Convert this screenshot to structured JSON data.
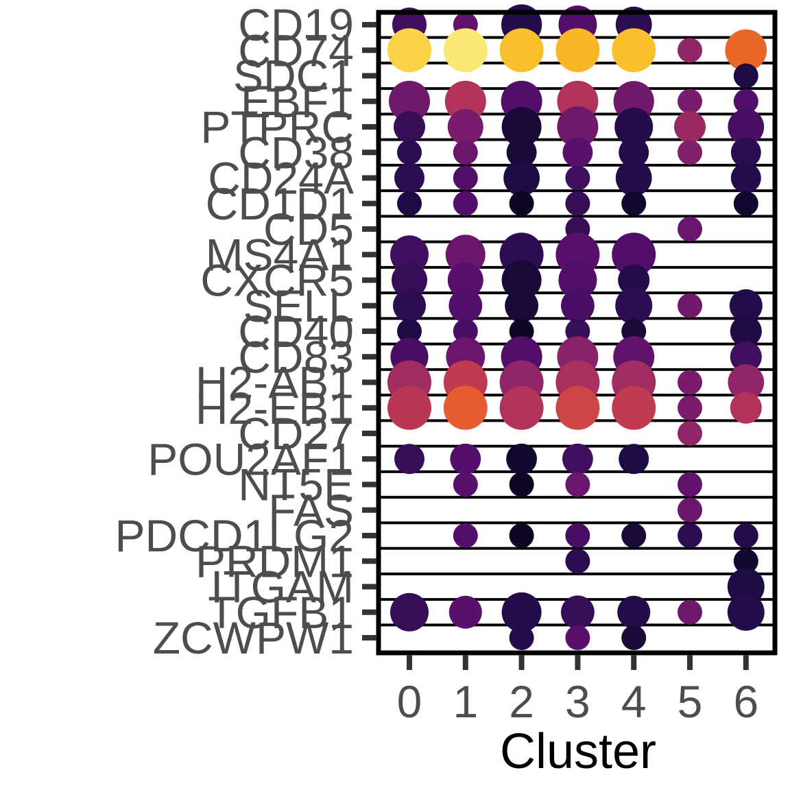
{
  "chart_data": {
    "type": "dotplot",
    "xlabel": "Cluster",
    "clusters": [
      "0",
      "1",
      "2",
      "3",
      "4",
      "5",
      "6"
    ],
    "genes": [
      "CD19",
      "CD74",
      "SDC1",
      "EBF1",
      "PTPRC",
      "CD38",
      "CD24A",
      "CD1D1",
      "CD5",
      "MS4A1",
      "CXCR5",
      "SELL",
      "CD40",
      "CD83",
      "H2-AB1",
      "H2-EB1",
      "CD27",
      "POU2AF1",
      "NT5E",
      "FAS",
      "PDCD1LG2",
      "PRDM1",
      "ITGAM",
      "TGFB1",
      "ZCWPW1"
    ],
    "grid": true,
    "colormap": "inferno",
    "note_sizes": "size = relative dot size (0-1), color = relative expression (0-1)",
    "dots": [
      {
        "gene": "CD19",
        "cluster": "0",
        "size": 0.65,
        "expr": 0.2
      },
      {
        "gene": "CD19",
        "cluster": "1",
        "size": 0.3,
        "expr": 0.28
      },
      {
        "gene": "CD19",
        "cluster": "2",
        "size": 0.88,
        "expr": 0.14
      },
      {
        "gene": "CD19",
        "cluster": "3",
        "size": 0.8,
        "expr": 0.24
      },
      {
        "gene": "CD19",
        "cluster": "4",
        "size": 0.72,
        "expr": 0.16
      },
      {
        "gene": "CD74",
        "cluster": "0",
        "size": 1.0,
        "expr": 0.9
      },
      {
        "gene": "CD74",
        "cluster": "1",
        "size": 1.0,
        "expr": 0.95
      },
      {
        "gene": "CD74",
        "cluster": "2",
        "size": 1.0,
        "expr": 0.86
      },
      {
        "gene": "CD74",
        "cluster": "3",
        "size": 1.0,
        "expr": 0.84
      },
      {
        "gene": "CD74",
        "cluster": "4",
        "size": 1.0,
        "expr": 0.86
      },
      {
        "gene": "CD74",
        "cluster": "5",
        "size": 0.3,
        "expr": 0.4
      },
      {
        "gene": "CD74",
        "cluster": "6",
        "size": 0.92,
        "expr": 0.66
      },
      {
        "gene": "SDC1",
        "cluster": "6",
        "size": 0.3,
        "expr": 0.12
      },
      {
        "gene": "EBF1",
        "cluster": "0",
        "size": 0.9,
        "expr": 0.32
      },
      {
        "gene": "EBF1",
        "cluster": "1",
        "size": 0.9,
        "expr": 0.48
      },
      {
        "gene": "EBF1",
        "cluster": "2",
        "size": 0.9,
        "expr": 0.24
      },
      {
        "gene": "EBF1",
        "cluster": "3",
        "size": 0.9,
        "expr": 0.48
      },
      {
        "gene": "EBF1",
        "cluster": "4",
        "size": 0.88,
        "expr": 0.32
      },
      {
        "gene": "EBF1",
        "cluster": "5",
        "size": 0.3,
        "expr": 0.34
      },
      {
        "gene": "EBF1",
        "cluster": "6",
        "size": 0.3,
        "expr": 0.24
      },
      {
        "gene": "PTPRC",
        "cluster": "0",
        "size": 0.55,
        "expr": 0.18
      },
      {
        "gene": "PTPRC",
        "cluster": "1",
        "size": 0.7,
        "expr": 0.34
      },
      {
        "gene": "PTPRC",
        "cluster": "2",
        "size": 0.85,
        "expr": 0.1
      },
      {
        "gene": "PTPRC",
        "cluster": "3",
        "size": 0.9,
        "expr": 0.32
      },
      {
        "gene": "PTPRC",
        "cluster": "4",
        "size": 0.8,
        "expr": 0.14
      },
      {
        "gene": "PTPRC",
        "cluster": "5",
        "size": 0.55,
        "expr": 0.42
      },
      {
        "gene": "PTPRC",
        "cluster": "6",
        "size": 0.72,
        "expr": 0.22
      },
      {
        "gene": "CD38",
        "cluster": "0",
        "size": 0.3,
        "expr": 0.16
      },
      {
        "gene": "CD38",
        "cluster": "1",
        "size": 0.3,
        "expr": 0.3
      },
      {
        "gene": "CD38",
        "cluster": "2",
        "size": 0.5,
        "expr": 0.1
      },
      {
        "gene": "CD38",
        "cluster": "3",
        "size": 0.5,
        "expr": 0.26
      },
      {
        "gene": "CD38",
        "cluster": "4",
        "size": 0.5,
        "expr": 0.14
      },
      {
        "gene": "CD38",
        "cluster": "5",
        "size": 0.3,
        "expr": 0.36
      },
      {
        "gene": "CD38",
        "cluster": "6",
        "size": 0.5,
        "expr": 0.16
      },
      {
        "gene": "CD24A",
        "cluster": "0",
        "size": 0.5,
        "expr": 0.16
      },
      {
        "gene": "CD24A",
        "cluster": "1",
        "size": 0.3,
        "expr": 0.24
      },
      {
        "gene": "CD24A",
        "cluster": "2",
        "size": 0.72,
        "expr": 0.12
      },
      {
        "gene": "CD24A",
        "cluster": "3",
        "size": 0.3,
        "expr": 0.2
      },
      {
        "gene": "CD24A",
        "cluster": "4",
        "size": 0.72,
        "expr": 0.14
      },
      {
        "gene": "CD24A",
        "cluster": "6",
        "size": 0.5,
        "expr": 0.14
      },
      {
        "gene": "CD1D1",
        "cluster": "0",
        "size": 0.3,
        "expr": 0.12
      },
      {
        "gene": "CD1D1",
        "cluster": "1",
        "size": 0.3,
        "expr": 0.24
      },
      {
        "gene": "CD1D1",
        "cluster": "2",
        "size": 0.3,
        "expr": 0.06
      },
      {
        "gene": "CD1D1",
        "cluster": "3",
        "size": 0.3,
        "expr": 0.18
      },
      {
        "gene": "CD1D1",
        "cluster": "4",
        "size": 0.3,
        "expr": 0.08
      },
      {
        "gene": "CD1D1",
        "cluster": "6",
        "size": 0.3,
        "expr": 0.08
      },
      {
        "gene": "CD5",
        "cluster": "3",
        "size": 0.3,
        "expr": 0.18
      },
      {
        "gene": "CD5",
        "cluster": "5",
        "size": 0.3,
        "expr": 0.3
      },
      {
        "gene": "MS4A1",
        "cluster": "0",
        "size": 0.8,
        "expr": 0.2
      },
      {
        "gene": "MS4A1",
        "cluster": "1",
        "size": 0.85,
        "expr": 0.3
      },
      {
        "gene": "MS4A1",
        "cluster": "2",
        "size": 1.0,
        "expr": 0.16
      },
      {
        "gene": "MS4A1",
        "cluster": "3",
        "size": 1.0,
        "expr": 0.26
      },
      {
        "gene": "MS4A1",
        "cluster": "4",
        "size": 1.0,
        "expr": 0.24
      },
      {
        "gene": "CXCR5",
        "cluster": "0",
        "size": 0.7,
        "expr": 0.18
      },
      {
        "gene": "CXCR5",
        "cluster": "1",
        "size": 0.7,
        "expr": 0.26
      },
      {
        "gene": "CXCR5",
        "cluster": "2",
        "size": 0.85,
        "expr": 0.1
      },
      {
        "gene": "CXCR5",
        "cluster": "3",
        "size": 0.8,
        "expr": 0.24
      },
      {
        "gene": "CXCR5",
        "cluster": "4",
        "size": 0.55,
        "expr": 0.14
      },
      {
        "gene": "SELL",
        "cluster": "0",
        "size": 0.6,
        "expr": 0.16
      },
      {
        "gene": "SELL",
        "cluster": "1",
        "size": 0.62,
        "expr": 0.24
      },
      {
        "gene": "SELL",
        "cluster": "2",
        "size": 0.62,
        "expr": 0.1
      },
      {
        "gene": "SELL",
        "cluster": "3",
        "size": 0.62,
        "expr": 0.22
      },
      {
        "gene": "SELL",
        "cluster": "4",
        "size": 0.75,
        "expr": 0.16
      },
      {
        "gene": "SELL",
        "cluster": "5",
        "size": 0.3,
        "expr": 0.32
      },
      {
        "gene": "SELL",
        "cluster": "6",
        "size": 0.6,
        "expr": 0.14
      },
      {
        "gene": "CD40",
        "cluster": "0",
        "size": 0.3,
        "expr": 0.12
      },
      {
        "gene": "CD40",
        "cluster": "1",
        "size": 0.3,
        "expr": 0.22
      },
      {
        "gene": "CD40",
        "cluster": "2",
        "size": 0.3,
        "expr": 0.06
      },
      {
        "gene": "CD40",
        "cluster": "3",
        "size": 0.3,
        "expr": 0.18
      },
      {
        "gene": "CD40",
        "cluster": "4",
        "size": 0.3,
        "expr": 0.1
      },
      {
        "gene": "CD40",
        "cluster": "6",
        "size": 0.55,
        "expr": 0.12
      },
      {
        "gene": "CD83",
        "cluster": "0",
        "size": 0.78,
        "expr": 0.22
      },
      {
        "gene": "CD83",
        "cluster": "1",
        "size": 0.82,
        "expr": 0.3
      },
      {
        "gene": "CD83",
        "cluster": "2",
        "size": 0.9,
        "expr": 0.24
      },
      {
        "gene": "CD83",
        "cluster": "3",
        "size": 0.9,
        "expr": 0.38
      },
      {
        "gene": "CD83",
        "cluster": "4",
        "size": 0.9,
        "expr": 0.28
      },
      {
        "gene": "CD83",
        "cluster": "6",
        "size": 0.55,
        "expr": 0.2
      },
      {
        "gene": "H2-AB1",
        "cluster": "0",
        "size": 1.0,
        "expr": 0.44
      },
      {
        "gene": "H2-AB1",
        "cluster": "1",
        "size": 1.0,
        "expr": 0.52
      },
      {
        "gene": "H2-AB1",
        "cluster": "2",
        "size": 1.0,
        "expr": 0.4
      },
      {
        "gene": "H2-AB1",
        "cluster": "3",
        "size": 1.0,
        "expr": 0.46
      },
      {
        "gene": "H2-AB1",
        "cluster": "4",
        "size": 1.0,
        "expr": 0.44
      },
      {
        "gene": "H2-AB1",
        "cluster": "5",
        "size": 0.3,
        "expr": 0.34
      },
      {
        "gene": "H2-AB1",
        "cluster": "6",
        "size": 0.72,
        "expr": 0.4
      },
      {
        "gene": "H2-EB1",
        "cluster": "0",
        "size": 1.0,
        "expr": 0.5
      },
      {
        "gene": "H2-EB1",
        "cluster": "1",
        "size": 1.0,
        "expr": 0.64
      },
      {
        "gene": "H2-EB1",
        "cluster": "2",
        "size": 1.0,
        "expr": 0.48
      },
      {
        "gene": "H2-EB1",
        "cluster": "3",
        "size": 1.0,
        "expr": 0.56
      },
      {
        "gene": "H2-EB1",
        "cluster": "4",
        "size": 1.0,
        "expr": 0.52
      },
      {
        "gene": "H2-EB1",
        "cluster": "5",
        "size": 0.3,
        "expr": 0.34
      },
      {
        "gene": "H2-EB1",
        "cluster": "6",
        "size": 0.55,
        "expr": 0.48
      },
      {
        "gene": "CD27",
        "cluster": "5",
        "size": 0.3,
        "expr": 0.4
      },
      {
        "gene": "POU2AF1",
        "cluster": "0",
        "size": 0.5,
        "expr": 0.18
      },
      {
        "gene": "POU2AF1",
        "cluster": "1",
        "size": 0.52,
        "expr": 0.24
      },
      {
        "gene": "POU2AF1",
        "cluster": "2",
        "size": 0.52,
        "expr": 0.08
      },
      {
        "gene": "POU2AF1",
        "cluster": "3",
        "size": 0.52,
        "expr": 0.2
      },
      {
        "gene": "POU2AF1",
        "cluster": "4",
        "size": 0.5,
        "expr": 0.12
      },
      {
        "gene": "NT5E",
        "cluster": "1",
        "size": 0.3,
        "expr": 0.26
      },
      {
        "gene": "NT5E",
        "cluster": "2",
        "size": 0.3,
        "expr": 0.06
      },
      {
        "gene": "NT5E",
        "cluster": "3",
        "size": 0.3,
        "expr": 0.3
      },
      {
        "gene": "NT5E",
        "cluster": "5",
        "size": 0.3,
        "expr": 0.28
      },
      {
        "gene": "FAS",
        "cluster": "5",
        "size": 0.3,
        "expr": 0.3
      },
      {
        "gene": "PDCD1LG2",
        "cluster": "1",
        "size": 0.3,
        "expr": 0.24
      },
      {
        "gene": "PDCD1LG2",
        "cluster": "2",
        "size": 0.3,
        "expr": 0.06
      },
      {
        "gene": "PDCD1LG2",
        "cluster": "3",
        "size": 0.3,
        "expr": 0.22
      },
      {
        "gene": "PDCD1LG2",
        "cluster": "4",
        "size": 0.3,
        "expr": 0.1
      },
      {
        "gene": "PDCD1LG2",
        "cluster": "5",
        "size": 0.3,
        "expr": 0.16
      },
      {
        "gene": "PDCD1LG2",
        "cluster": "6",
        "size": 0.3,
        "expr": 0.14
      },
      {
        "gene": "PRDM1",
        "cluster": "3",
        "size": 0.3,
        "expr": 0.16
      },
      {
        "gene": "PRDM1",
        "cluster": "6",
        "size": 0.3,
        "expr": 0.08
      },
      {
        "gene": "ITGAM",
        "cluster": "6",
        "size": 0.75,
        "expr": 0.12
      },
      {
        "gene": "TGFB1",
        "cluster": "0",
        "size": 0.8,
        "expr": 0.18
      },
      {
        "gene": "TGFB1",
        "cluster": "1",
        "size": 0.6,
        "expr": 0.26
      },
      {
        "gene": "TGFB1",
        "cluster": "2",
        "size": 0.85,
        "expr": 0.14
      },
      {
        "gene": "TGFB1",
        "cluster": "3",
        "size": 0.62,
        "expr": 0.18
      },
      {
        "gene": "TGFB1",
        "cluster": "4",
        "size": 0.6,
        "expr": 0.14
      },
      {
        "gene": "TGFB1",
        "cluster": "5",
        "size": 0.3,
        "expr": 0.32
      },
      {
        "gene": "TGFB1",
        "cluster": "6",
        "size": 0.75,
        "expr": 0.14
      },
      {
        "gene": "ZCWPW1",
        "cluster": "2",
        "size": 0.3,
        "expr": 0.14
      },
      {
        "gene": "ZCWPW1",
        "cluster": "3",
        "size": 0.3,
        "expr": 0.26
      },
      {
        "gene": "ZCWPW1",
        "cluster": "4",
        "size": 0.3,
        "expr": 0.1
      }
    ]
  }
}
